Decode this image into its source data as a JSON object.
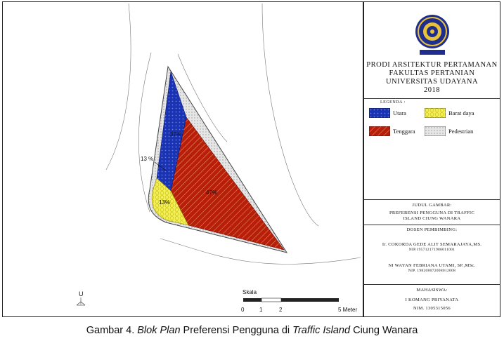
{
  "institution": {
    "line1": "PRODI ARSITEKTUR PERTAMANAN",
    "line2": "FAKULTAS PERTANIAN",
    "line3": "UNIVERSITAS UDAYANA",
    "year": "2018"
  },
  "legend": {
    "title": "LEGENDA :",
    "items": [
      {
        "label": "Utara",
        "color": "#1a33b3"
      },
      {
        "label": "Barat daya",
        "color": "#f2ef5a"
      },
      {
        "label": "Tenggara",
        "color": "#b81f0a"
      },
      {
        "label": "Pedestrian",
        "color": "#d9d9d9"
      }
    ]
  },
  "drawing": {
    "heading": "JUDUL GAMBAR:",
    "title_line1": "PREFERENSI PENGGUNA DI TRAFFIC",
    "title_line2": "ISLAND CIUNG WANARA"
  },
  "supervisors": {
    "heading": "DOSEN PEMBIMBING:",
    "sup1_name": "Ir. COKORDA GEDE ALIT SEMARAJAYA,MS.",
    "sup1_nip": "NIP.195712171986011001",
    "sup2_name": "NI WAYAN FEBRIANA UTAMI, SP.,MSc.",
    "sup2_nip": "NIP. 198208072008012008"
  },
  "student": {
    "heading": "MAHASISWA:",
    "name": "I KOMANG PRIYANATA",
    "nim": "NIM. 1305315056"
  },
  "plan": {
    "labels": {
      "utara": "37%",
      "tenggara": "47%",
      "barat_daya": "13%",
      "callout": "13 %"
    },
    "north": "U",
    "scale_title": "Skala",
    "scale_ticks": [
      "0",
      "1",
      "2",
      "5 Meter"
    ]
  },
  "caption": {
    "prefix": "Gambar 4. ",
    "italic1": "Blok Plan",
    "middle": " Preferensi Pengguna di ",
    "italic2": "Traffic Island",
    "suffix": " Ciung Wanara"
  }
}
